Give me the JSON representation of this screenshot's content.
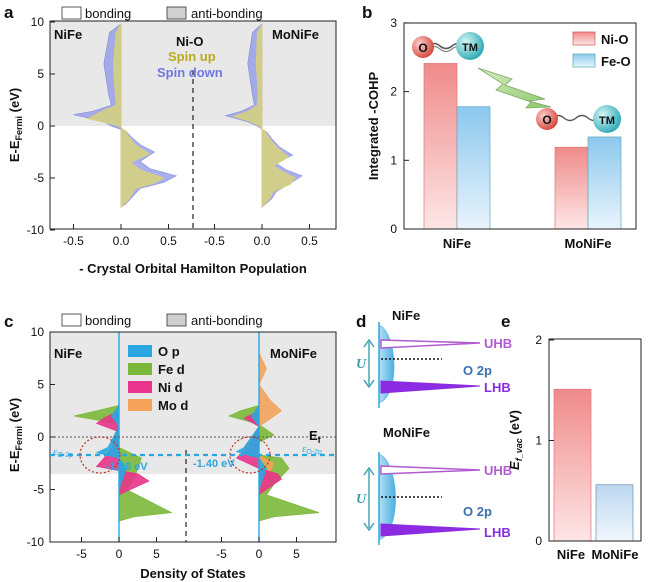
{
  "colors": {
    "bond_bg": "#e8e8e8",
    "ni_o": "#f08a8a",
    "fe_o": "#8cc8ee",
    "spin_up": "#d8d27a",
    "spin_down": "#8d96e6",
    "o_p": "#2aa7e0",
    "fe_d": "#7bb83a",
    "ni_d": "#e8348a",
    "mo_d": "#f4a25a",
    "uhb": "#b05bd0",
    "lhb": "#8b2be2",
    "o2p_band": "#4ab0e0"
  },
  "icons": {
    "bond_arrow": "lightning-arrow-icon",
    "atom_o": "oxygen-atom-icon",
    "atom_tm": "transition-metal-atom-icon"
  },
  "panels": {
    "a": {
      "letter": "a",
      "legend": [
        "bonding",
        "anti-bonding"
      ],
      "left_label": "NiFe",
      "right_label": "MoNiFe",
      "center_label": "Ni-O",
      "spin_up": "Spin up",
      "spin_down": "Spin down",
      "ylabel_main": "E-E",
      "ylabel_sub": "Fermi",
      "ylabel_tail": " (eV)",
      "xlabel": "- Crystal Orbital Hamilton Population",
      "yticks": [
        "10",
        "5",
        "0",
        "-5",
        "-10"
      ],
      "xticks": [
        "-0.5",
        "0.0",
        "0.5",
        "-0.5",
        "0.0",
        "0.5"
      ]
    },
    "b": {
      "letter": "b",
      "ylabel": "Integrated -COHP",
      "legend": [
        "Ni-O",
        "Fe-O"
      ],
      "atom_o": "O",
      "atom_tm": "TM",
      "yticks": [
        "3",
        "2",
        "1",
        "0"
      ],
      "xticks": [
        "NiFe",
        "MoNiFe"
      ]
    },
    "c": {
      "letter": "c",
      "legend": [
        "bonding",
        "anti-bonding"
      ],
      "left_label": "NiFe",
      "right_label": "MoNiFe",
      "orbitals": [
        "O p",
        "Fe d",
        "Ni d",
        "Mo d"
      ],
      "ef_label": "E",
      "ef_sub": "f",
      "eo_label": "ε",
      "eo_sub": "O-2p",
      "eo_left_value": "-1.58 eV",
      "eo_right_value": "-1.40 eV",
      "ylabel_main": "E-E",
      "ylabel_sub": "Fermi",
      "ylabel_tail": " (eV)",
      "xlabel": "Density of States",
      "yticks": [
        "10",
        "5",
        "0",
        "-5",
        "-10"
      ],
      "xticks": [
        "-5",
        "0",
        "5",
        "-5",
        "0",
        "5"
      ]
    },
    "d": {
      "letter": "d",
      "top_label": "NiFe",
      "bottom_label": "MoNiFe",
      "uhb": "UHB",
      "o2p": "O 2p",
      "lhb": "LHB",
      "u": "U"
    },
    "e": {
      "letter": "e",
      "ylabel_main": "E",
      "ylabel_sub": "f_vac",
      "ylabel_tail": " (eV)",
      "yticks": [
        "2",
        "1",
        "0"
      ],
      "xticks": [
        "NiFe",
        "MoNiFe"
      ]
    }
  },
  "chart_data": [
    {
      "panel": "a",
      "type": "area",
      "xlabel": "- Crystal Orbital Hamilton Population",
      "ylabel": "E-E Fermi (eV)",
      "ylim": [
        -10,
        10
      ],
      "xlim": [
        -0.75,
        0.75
      ],
      "legend": [
        "bonding",
        "anti-bonding"
      ],
      "series": [
        {
          "name": "Spin up",
          "structure": "NiFe",
          "points": [
            [
              0,
              9.8
            ],
            [
              -0.05,
              9
            ],
            [
              -0.08,
              6
            ],
            [
              -0.06,
              3
            ],
            [
              -0.05,
              2
            ],
            [
              -0.18,
              1.5
            ],
            [
              -0.35,
              0.7
            ],
            [
              -0.15,
              0.3
            ],
            [
              -0.02,
              0
            ],
            [
              0.05,
              -0.5
            ],
            [
              0.08,
              -1
            ],
            [
              0.15,
              -1.8
            ],
            [
              0.3,
              -2.7
            ],
            [
              0.1,
              -3.5
            ],
            [
              0.2,
              -4.2
            ],
            [
              0.45,
              -5
            ],
            [
              0.35,
              -5.5
            ],
            [
              0.15,
              -6
            ],
            [
              0.1,
              -6.8
            ],
            [
              0.06,
              -7.3
            ],
            [
              0,
              -7.8
            ]
          ]
        },
        {
          "name": "Spin down",
          "structure": "NiFe",
          "points": [
            [
              0,
              9.8
            ],
            [
              -0.12,
              9
            ],
            [
              -0.18,
              6
            ],
            [
              -0.13,
              3
            ],
            [
              -0.1,
              2
            ],
            [
              -0.3,
              1.4
            ],
            [
              -0.5,
              1.1
            ],
            [
              -0.2,
              0.5
            ],
            [
              -0.1,
              0
            ],
            [
              0.05,
              -0.5
            ],
            [
              0.1,
              -1
            ],
            [
              0.2,
              -1.8
            ],
            [
              0.35,
              -2.5
            ],
            [
              0.2,
              -3.4
            ],
            [
              0.3,
              -4.1
            ],
            [
              0.58,
              -4.8
            ],
            [
              0.45,
              -5.4
            ],
            [
              0.2,
              -6
            ],
            [
              0.12,
              -6.8
            ],
            [
              0.05,
              -7.5
            ],
            [
              0,
              -7.8
            ]
          ]
        },
        {
          "name": "Spin up",
          "structure": "MoNiFe",
          "points": [
            [
              0,
              9.8
            ],
            [
              -0.05,
              9
            ],
            [
              -0.06,
              6
            ],
            [
              -0.04,
              3
            ],
            [
              -0.05,
              2
            ],
            [
              -0.15,
              1.4
            ],
            [
              -0.3,
              0.9
            ],
            [
              -0.12,
              0.4
            ],
            [
              -0.03,
              0
            ],
            [
              0.04,
              -0.6
            ],
            [
              0.08,
              -1.2
            ],
            [
              0.15,
              -2
            ],
            [
              0.28,
              -3
            ],
            [
              0.12,
              -3.8
            ],
            [
              0.2,
              -4.3
            ],
            [
              0.35,
              -5
            ],
            [
              0.3,
              -5.6
            ],
            [
              0.12,
              -6.3
            ],
            [
              0.08,
              -7
            ],
            [
              0,
              -7.8
            ]
          ]
        },
        {
          "name": "Spin down",
          "structure": "MoNiFe",
          "points": [
            [
              0,
              9.8
            ],
            [
              -0.1,
              9
            ],
            [
              -0.15,
              6
            ],
            [
              -0.1,
              3
            ],
            [
              -0.08,
              2
            ],
            [
              -0.22,
              1.4
            ],
            [
              -0.38,
              1
            ],
            [
              -0.15,
              0.4
            ],
            [
              -0.05,
              0
            ],
            [
              0.05,
              -0.6
            ],
            [
              0.1,
              -1.2
            ],
            [
              0.18,
              -2
            ],
            [
              0.32,
              -2.8
            ],
            [
              0.15,
              -3.6
            ],
            [
              0.25,
              -4.2
            ],
            [
              0.42,
              -4.8
            ],
            [
              0.3,
              -5.5
            ],
            [
              0.15,
              -6.3
            ],
            [
              0.1,
              -7
            ],
            [
              0,
              -7.8
            ]
          ]
        }
      ]
    },
    {
      "panel": "b",
      "type": "bar",
      "ylabel": "Integrated -COHP",
      "ylim": [
        0,
        3
      ],
      "categories": [
        "NiFe",
        "MoNiFe"
      ],
      "series": [
        {
          "name": "Ni-O",
          "values": [
            2.41,
            1.19
          ]
        },
        {
          "name": "Fe-O",
          "values": [
            1.78,
            1.34
          ]
        }
      ]
    },
    {
      "panel": "c",
      "type": "area",
      "xlabel": "Density of States",
      "ylabel": "E-E Fermi (eV)",
      "ylim": [
        -10,
        10
      ],
      "xlim": [
        -8,
        8
      ],
      "legend": [
        "bonding",
        "anti-bonding"
      ],
      "annotations": [
        {
          "text": "-1.58 eV",
          "structure": "NiFe"
        },
        {
          "text": "-1.40 eV",
          "structure": "MoNiFe"
        }
      ],
      "series": [
        {
          "name": "Fe d",
          "structure": "NiFe",
          "points": [
            [
              0,
              3
            ],
            [
              -3,
              2.5
            ],
            [
              -6,
              2
            ],
            [
              -2,
              1.5
            ],
            [
              0,
              1.2
            ],
            [
              -1,
              -0.5
            ],
            [
              0,
              -1
            ],
            [
              3,
              -2
            ],
            [
              2,
              -4
            ],
            [
              1,
              -5
            ],
            [
              7,
              -7.2
            ],
            [
              2,
              -7.6
            ],
            [
              0,
              -8
            ]
          ]
        },
        {
          "name": "Ni d",
          "structure": "NiFe",
          "points": [
            [
              0,
              2.5
            ],
            [
              -2,
              1.8
            ],
            [
              -3,
              1.3
            ],
            [
              0,
              0.5
            ],
            [
              -1,
              -1
            ],
            [
              -2,
              -2
            ],
            [
              -3,
              -2.8
            ],
            [
              0,
              -3.2
            ],
            [
              2.5,
              -3.5
            ],
            [
              4,
              -4.2
            ],
            [
              1.5,
              -5
            ],
            [
              0,
              -5.5
            ]
          ]
        },
        {
          "name": "O p",
          "structure": "NiFe",
          "points": [
            [
              0,
              3
            ],
            [
              -1,
              2
            ],
            [
              0,
              1
            ],
            [
              -1.5,
              -1
            ],
            [
              -3,
              -1.5
            ],
            [
              0,
              -2
            ],
            [
              1,
              -3
            ],
            [
              0,
              -5
            ]
          ]
        },
        {
          "name": "Fe d",
          "structure": "MoNiFe",
          "points": [
            [
              0,
              3
            ],
            [
              -2.5,
              2.5
            ],
            [
              -4,
              2
            ],
            [
              0,
              1.2
            ],
            [
              2,
              0.2
            ],
            [
              0,
              -0.5
            ],
            [
              -2,
              -1.5
            ],
            [
              3,
              -2
            ],
            [
              4,
              -3
            ],
            [
              2,
              -4.5
            ],
            [
              1,
              -5.5
            ],
            [
              8,
              -7.2
            ],
            [
              2,
              -7.6
            ],
            [
              0,
              -8
            ]
          ]
        },
        {
          "name": "Ni d",
          "structure": "MoNiFe",
          "points": [
            [
              0,
              2.5
            ],
            [
              -2,
              1.8
            ],
            [
              0,
              1
            ],
            [
              -1.5,
              -1
            ],
            [
              -3,
              -2
            ],
            [
              0,
              -3
            ],
            [
              2.5,
              -3.5
            ],
            [
              3,
              -4
            ],
            [
              1,
              -5
            ],
            [
              0,
              -5.5
            ]
          ]
        },
        {
          "name": "Mo d",
          "structure": "MoNiFe",
          "points": [
            [
              0,
              8
            ],
            [
              1,
              6.5
            ],
            [
              0,
              5
            ],
            [
              1.5,
              3.5
            ],
            [
              3,
              2.5
            ],
            [
              1,
              1.5
            ],
            [
              0,
              1
            ],
            [
              -2,
              -1
            ],
            [
              2,
              -2.5
            ],
            [
              1,
              -4
            ],
            [
              0,
              -5
            ]
          ]
        },
        {
          "name": "O p",
          "structure": "MoNiFe",
          "points": [
            [
              0,
              3
            ],
            [
              -1,
              2
            ],
            [
              0,
              1
            ],
            [
              -2,
              -1
            ],
            [
              -3,
              -1.4
            ],
            [
              0,
              -2
            ],
            [
              1,
              -3
            ],
            [
              0,
              -5
            ]
          ]
        }
      ]
    },
    {
      "panel": "e",
      "type": "bar",
      "ylabel": "E f_vac (eV)",
      "ylim": [
        0,
        2
      ],
      "categories": [
        "NiFe",
        "MoNiFe"
      ],
      "values": [
        1.51,
        0.56
      ]
    }
  ]
}
